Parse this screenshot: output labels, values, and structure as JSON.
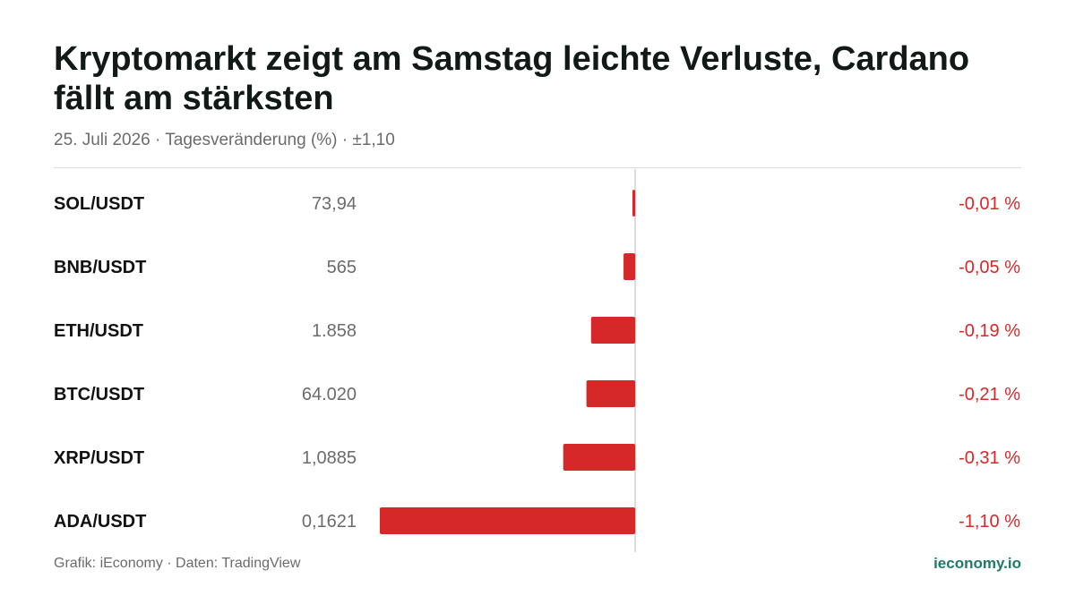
{
  "header": {
    "title": "Kryptomarkt zeigt am Samstag leichte Verluste, Cardano fällt am stärksten",
    "subtitle": "25. Juli 2026 · Tagesveränderung (%) · ±1,10"
  },
  "footer": {
    "source": "Grafik: iEconomy · Daten: TradingView",
    "brand": "ieconomy.io"
  },
  "colors": {
    "negative": "#d62828",
    "brand": "#1f7a68"
  },
  "chart_data": {
    "type": "bar",
    "orientation": "horizontal",
    "categories": [
      "SOL/USDT",
      "BNB/USDT",
      "ETH/USDT",
      "BTC/USDT",
      "XRP/USDT",
      "ADA/USDT"
    ],
    "prices": [
      "73,94",
      "565",
      "1.858",
      "64.020",
      "1,0885",
      "0,1621"
    ],
    "values": [
      -0.01,
      -0.05,
      -0.19,
      -0.21,
      -0.31,
      -1.1
    ],
    "value_labels": [
      "-0,01 %",
      "-0,05 %",
      "-0,19 %",
      "-0,21 %",
      "-0,31 %",
      "-1,10 %"
    ],
    "xlim": [
      -1.1,
      1.1
    ],
    "grid": false,
    "legend": "none"
  }
}
